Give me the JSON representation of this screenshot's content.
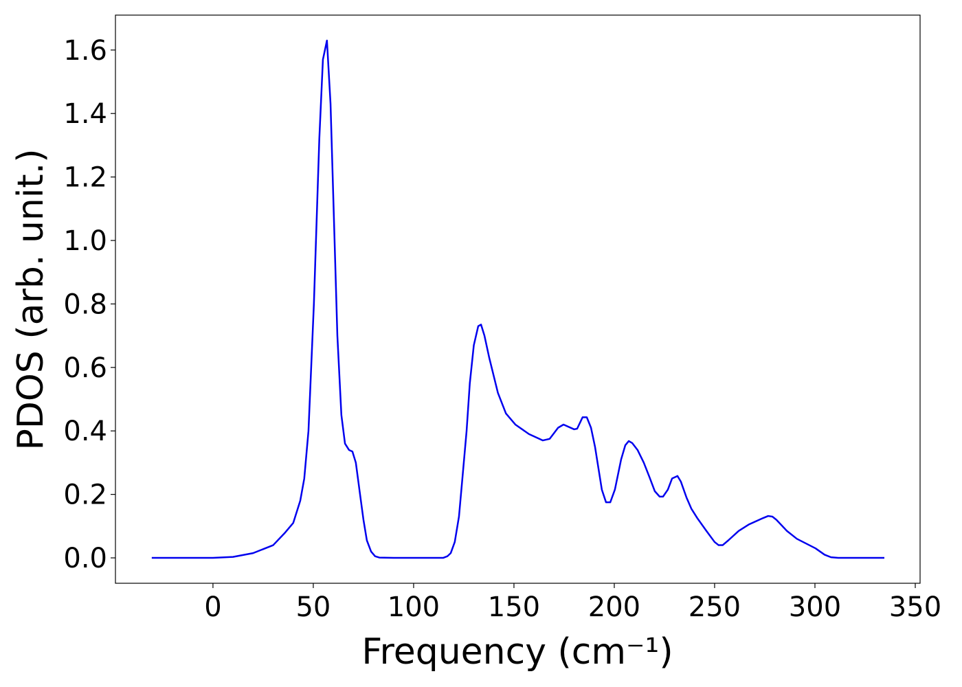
{
  "chart_data": {
    "type": "line",
    "xlabel": "Frequency (cm⁻¹)",
    "ylabel": "PDOS (arb. unit.)",
    "xlim": [
      -48.6,
      352.4
    ],
    "ylim": [
      -0.08,
      1.71
    ],
    "xticks": [
      0,
      50,
      100,
      150,
      200,
      250,
      300,
      350
    ],
    "yticks": [
      {
        "value": 0,
        "label": "0.0"
      },
      0.2,
      0.4,
      0.6,
      0.8,
      {
        "value": 1,
        "label": "1.0"
      },
      1.2,
      1.4,
      1.6
    ],
    "grid": false,
    "series": [
      {
        "name": "PDOS",
        "color": "#0000ee",
        "x": [
          -30.5,
          0,
          10,
          20,
          30,
          36,
          40,
          43.5,
          45.5,
          47.6,
          50.3,
          53,
          54.8,
          56.8,
          58.6,
          62,
          64,
          65.8,
          67.8,
          69.5,
          71.2,
          73.3,
          75,
          76.7,
          78.8,
          80.8,
          82.9,
          90,
          114.7,
          116.8,
          118.5,
          120.5,
          122.6,
          124.3,
          126.4,
          128,
          130,
          132.2,
          133.6,
          135.3,
          137.7,
          142,
          146,
          150.7,
          157.5,
          164.4,
          167.8,
          172,
          174.7,
          180,
          181.5,
          184.2,
          186.3,
          188.4,
          190.4,
          193.8,
          195.9,
          198,
          200.3,
          203.4,
          205.5,
          207.2,
          208.9,
          211.6,
          214.7,
          217.5,
          220.2,
          222.6,
          224.3,
          226.7,
          228.8,
          231.5,
          233.2,
          236,
          238.4,
          241.4,
          245.9,
          250,
          252,
          254,
          256.8,
          262,
          267,
          274,
          276.7,
          278.8,
          280.8,
          286,
          291,
          300.3,
          304.8,
          308,
          311.6,
          334.6
        ],
        "values": [
          0,
          0,
          0.003,
          0.015,
          0.04,
          0.08,
          0.11,
          0.18,
          0.25,
          0.4,
          0.8,
          1.32,
          1.57,
          1.63,
          1.43,
          0.7,
          0.45,
          0.36,
          0.34,
          0.335,
          0.3,
          0.2,
          0.12,
          0.055,
          0.02,
          0.005,
          0.001,
          0,
          0,
          0.005,
          0.015,
          0.05,
          0.13,
          0.25,
          0.4,
          0.55,
          0.67,
          0.73,
          0.735,
          0.7,
          0.63,
          0.52,
          0.455,
          0.42,
          0.39,
          0.37,
          0.375,
          0.41,
          0.42,
          0.405,
          0.407,
          0.443,
          0.443,
          0.41,
          0.35,
          0.215,
          0.175,
          0.175,
          0.215,
          0.31,
          0.355,
          0.368,
          0.362,
          0.34,
          0.3,
          0.255,
          0.21,
          0.193,
          0.193,
          0.215,
          0.25,
          0.258,
          0.24,
          0.19,
          0.155,
          0.125,
          0.085,
          0.05,
          0.04,
          0.04,
          0.055,
          0.085,
          0.105,
          0.125,
          0.132,
          0.13,
          0.12,
          0.085,
          0.06,
          0.03,
          0.01,
          0.002,
          0,
          0
        ]
      }
    ]
  }
}
